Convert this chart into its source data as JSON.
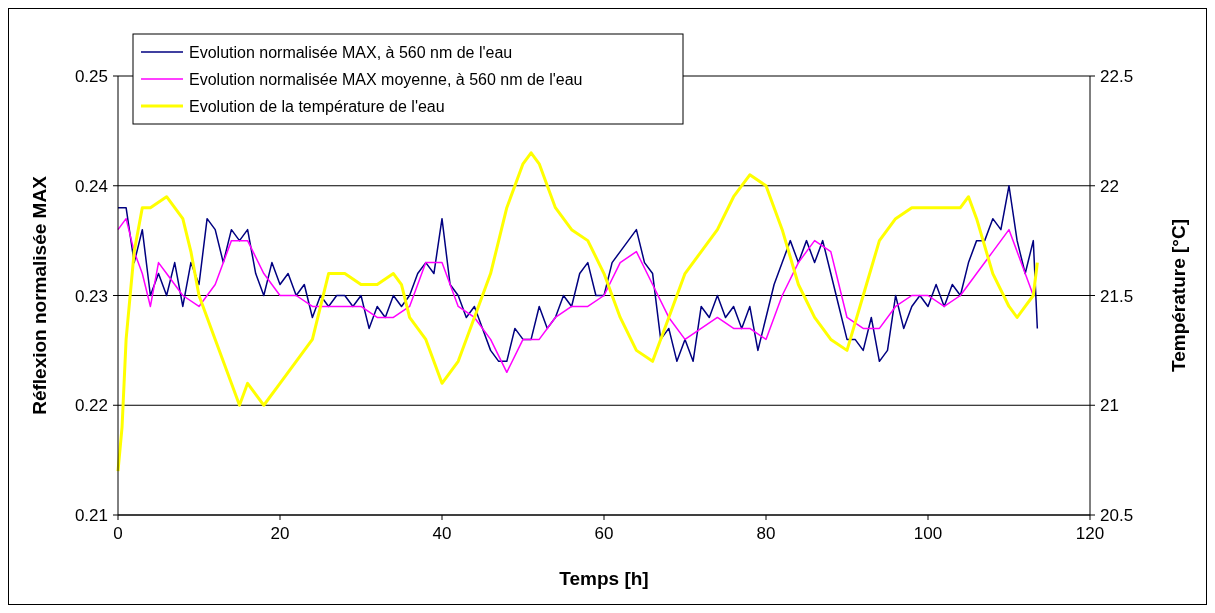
{
  "chart_data": {
    "type": "line",
    "xlabel": "Temps [h]",
    "ylabel": "Réflexion normalisée MAX",
    "y2label": "Température [°C]",
    "xlim": [
      0,
      120
    ],
    "xticks": [
      0,
      20,
      40,
      60,
      80,
      100,
      120
    ],
    "ylim": [
      0.21,
      0.25
    ],
    "yticks": [
      0.21,
      0.22,
      0.23,
      0.24,
      0.25
    ],
    "y2lim": [
      20.5,
      22.5
    ],
    "y2ticks": [
      20.5,
      21,
      21.5,
      22,
      22.5
    ],
    "grid": "y",
    "legend": "top left",
    "marker": "none",
    "line_style": "solid",
    "series": [
      {
        "name": "Evolution normalisée MAX, à 560 nm de l'eau",
        "color": "#000080",
        "x": [
          0,
          1,
          2,
          3,
          4,
          5,
          6,
          7,
          8,
          9,
          10,
          11,
          12,
          13,
          14,
          15,
          16,
          17,
          18,
          19,
          20,
          21,
          22,
          23,
          24,
          25,
          26,
          27,
          28,
          29,
          30,
          31,
          32,
          33,
          34,
          35,
          36,
          37,
          38,
          39,
          40,
          41,
          42,
          43,
          44,
          45,
          46,
          47,
          48,
          49,
          50,
          51,
          52,
          53,
          54,
          55,
          56,
          57,
          58,
          59,
          60,
          61,
          62,
          63,
          64,
          65,
          66,
          67,
          68,
          69,
          70,
          71,
          72,
          73,
          74,
          75,
          76,
          77,
          78,
          79,
          80,
          81,
          82,
          83,
          84,
          85,
          86,
          87,
          88,
          89,
          90,
          91,
          92,
          93,
          94,
          95,
          96,
          97,
          98,
          99,
          100,
          101,
          102,
          103,
          104,
          105,
          106,
          107,
          108,
          109,
          110,
          111,
          112,
          113,
          113.5
        ],
        "values": [
          0.238,
          0.238,
          0.233,
          0.236,
          0.23,
          0.232,
          0.23,
          0.233,
          0.229,
          0.233,
          0.231,
          0.237,
          0.236,
          0.233,
          0.236,
          0.235,
          0.236,
          0.232,
          0.23,
          0.233,
          0.231,
          0.232,
          0.23,
          0.231,
          0.228,
          0.23,
          0.229,
          0.23,
          0.23,
          0.229,
          0.23,
          0.227,
          0.229,
          0.228,
          0.23,
          0.229,
          0.23,
          0.232,
          0.233,
          0.232,
          0.237,
          0.231,
          0.23,
          0.228,
          0.229,
          0.227,
          0.225,
          0.224,
          0.224,
          0.227,
          0.226,
          0.226,
          0.229,
          0.227,
          0.228,
          0.23,
          0.229,
          0.232,
          0.233,
          0.23,
          0.23,
          0.233,
          0.234,
          0.235,
          0.236,
          0.233,
          0.232,
          0.226,
          0.227,
          0.224,
          0.226,
          0.224,
          0.229,
          0.228,
          0.23,
          0.228,
          0.229,
          0.227,
          0.229,
          0.225,
          0.228,
          0.231,
          0.233,
          0.235,
          0.233,
          0.235,
          0.233,
          0.235,
          0.232,
          0.229,
          0.226,
          0.226,
          0.225,
          0.228,
          0.224,
          0.225,
          0.23,
          0.227,
          0.229,
          0.23,
          0.229,
          0.231,
          0.229,
          0.231,
          0.23,
          0.233,
          0.235,
          0.235,
          0.237,
          0.236,
          0.24,
          0.235,
          0.232,
          0.235,
          0.227
        ]
      },
      {
        "name": "Evolution normalisée MAX moyenne, à 560 nm de l'eau",
        "color": "#ff00ff",
        "x": [
          0,
          1,
          2,
          3,
          4,
          5,
          6,
          8,
          10,
          12,
          14,
          16,
          18,
          20,
          22,
          24,
          26,
          28,
          30,
          32,
          34,
          36,
          38,
          40,
          42,
          44,
          46,
          48,
          50,
          52,
          54,
          56,
          58,
          60,
          62,
          64,
          66,
          68,
          70,
          72,
          74,
          76,
          78,
          80,
          82,
          84,
          86,
          88,
          90,
          92,
          94,
          96,
          98,
          100,
          102,
          104,
          106,
          108,
          110,
          112,
          113
        ],
        "values": [
          0.236,
          0.237,
          0.234,
          0.232,
          0.229,
          0.233,
          0.232,
          0.23,
          0.229,
          0.231,
          0.235,
          0.235,
          0.232,
          0.23,
          0.23,
          0.229,
          0.229,
          0.229,
          0.229,
          0.228,
          0.228,
          0.229,
          0.233,
          0.233,
          0.229,
          0.228,
          0.226,
          0.223,
          0.226,
          0.226,
          0.228,
          0.229,
          0.229,
          0.23,
          0.233,
          0.234,
          0.231,
          0.228,
          0.226,
          0.227,
          0.228,
          0.227,
          0.227,
          0.226,
          0.23,
          0.233,
          0.235,
          0.234,
          0.228,
          0.227,
          0.227,
          0.229,
          0.23,
          0.23,
          0.229,
          0.23,
          0.232,
          0.234,
          0.236,
          0.232,
          0.23
        ]
      },
      {
        "name": "Evolution de la température de l'eau",
        "color": "#ffff00",
        "axis": "y2",
        "x": [
          0,
          0.5,
          1,
          2,
          3,
          4,
          6,
          8,
          9,
          10,
          12,
          14,
          15,
          16,
          17,
          18,
          20,
          22,
          24,
          26,
          28,
          30,
          32,
          34,
          35,
          36,
          38,
          40,
          42,
          44,
          46,
          48,
          50,
          51,
          52,
          54,
          56,
          58,
          60,
          62,
          64,
          66,
          68,
          70,
          72,
          74,
          76,
          78,
          80,
          82,
          84,
          86,
          88,
          90,
          92,
          94,
          96,
          98,
          100,
          102,
          104,
          105,
          106,
          108,
          110,
          111,
          112,
          113,
          113.5
        ],
        "values": [
          20.7,
          20.9,
          21.3,
          21.7,
          21.9,
          21.9,
          21.95,
          21.85,
          21.7,
          21.5,
          21.3,
          21.1,
          21.0,
          21.1,
          21.05,
          21.0,
          21.1,
          21.2,
          21.3,
          21.6,
          21.6,
          21.55,
          21.55,
          21.6,
          21.55,
          21.4,
          21.3,
          21.1,
          21.2,
          21.4,
          21.6,
          21.9,
          22.1,
          22.15,
          22.1,
          21.9,
          21.8,
          21.75,
          21.6,
          21.4,
          21.25,
          21.2,
          21.4,
          21.6,
          21.7,
          21.8,
          21.95,
          22.05,
          22.0,
          21.8,
          21.55,
          21.4,
          21.3,
          21.25,
          21.5,
          21.75,
          21.85,
          21.9,
          21.9,
          21.9,
          21.9,
          21.95,
          21.85,
          21.6,
          21.45,
          21.4,
          21.45,
          21.5,
          21.65
        ]
      }
    ]
  }
}
